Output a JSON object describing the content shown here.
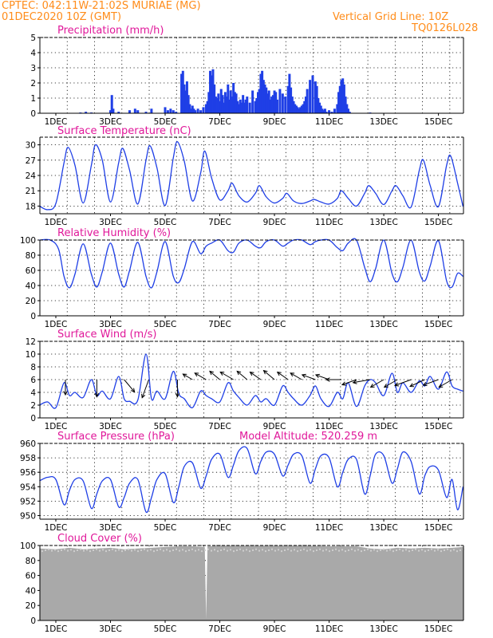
{
  "header": {
    "station_line": "CPTEC:   042:11W-21:02S   MURIAE (MG)",
    "date_line": "01DEC2020  10Z  (GMT)",
    "grid_line": "Vertical Grid Line: 10Z",
    "product_code": "TQ0126L028"
  },
  "colors": {
    "header": "#ff8c1a",
    "panel_title": "#e0189a",
    "series_line": "#1f3fe6",
    "precip_bar": "#1f3fe6",
    "cloud_fill": "#a9a9a9",
    "wind_arrow": "#000000",
    "grid": "#000000"
  },
  "x_axis": {
    "start": "01DEC2020 10Z",
    "days": 15.5,
    "tick_labels": [
      "1DEC",
      "3DEC",
      "5DEC",
      "7DEC",
      "9DEC",
      "11DEC",
      "13DEC",
      "15DEC"
    ],
    "tick_days": [
      1,
      3,
      5,
      7,
      9,
      11,
      13,
      15
    ],
    "vertical_grid": "daily at 10Z, dotted"
  },
  "chart_data": [
    {
      "id": "precip",
      "type": "bar",
      "title": "Precipitation (mm/h)",
      "ylim": [
        0,
        5
      ],
      "yticks": [
        0,
        1,
        2,
        3,
        4,
        5
      ],
      "x_units": "days since 01DEC 00Z",
      "x": [
        1.9,
        2.1,
        2.3,
        3.0,
        3.05,
        3.1,
        3.3,
        3.7,
        3.9,
        4.0,
        4.3,
        4.5,
        5.0,
        5.1,
        5.2,
        5.3,
        5.4,
        5.6,
        5.65,
        5.7,
        5.75,
        5.8,
        5.85,
        5.9,
        5.95,
        6.0,
        6.05,
        6.1,
        6.2,
        6.3,
        6.4,
        6.5,
        6.55,
        6.6,
        6.65,
        6.7,
        6.75,
        6.8,
        6.85,
        6.9,
        6.95,
        7.0,
        7.05,
        7.1,
        7.15,
        7.2,
        7.25,
        7.3,
        7.35,
        7.4,
        7.45,
        7.5,
        7.55,
        7.6,
        7.65,
        7.7,
        7.75,
        7.8,
        7.85,
        7.9,
        7.95,
        8.0,
        8.1,
        8.2,
        8.3,
        8.35,
        8.4,
        8.45,
        8.5,
        8.55,
        8.6,
        8.65,
        8.7,
        8.75,
        8.8,
        8.85,
        8.9,
        8.95,
        9.0,
        9.05,
        9.1,
        9.2,
        9.3,
        9.4,
        9.5,
        9.55,
        9.6,
        9.65,
        9.7,
        9.75,
        9.8,
        9.85,
        9.9,
        9.95,
        10.0,
        10.05,
        10.1,
        10.15,
        10.2,
        10.3,
        10.4,
        10.5,
        10.55,
        10.6,
        10.65,
        10.7,
        10.75,
        10.8,
        10.85,
        10.9,
        11.0,
        11.1,
        11.2,
        11.3,
        11.35,
        11.4,
        11.45,
        11.5,
        11.55,
        11.6,
        11.65,
        11.7,
        11.75,
        12.5
      ],
      "values": [
        0.05,
        0.1,
        0.05,
        0.2,
        1.2,
        0.3,
        0.1,
        0.2,
        0.3,
        0.2,
        0.1,
        0.3,
        0.4,
        0.2,
        0.3,
        0.2,
        0.1,
        2.6,
        2.8,
        1.9,
        1.5,
        2.1,
        1.2,
        0.6,
        0.3,
        0.5,
        0.3,
        0.2,
        0.3,
        0.2,
        0.4,
        0.6,
        0.8,
        1.4,
        2.8,
        2.5,
        2.9,
        1.9,
        1.1,
        1.0,
        1.3,
        0.8,
        1.6,
        1.2,
        0.7,
        1.4,
        1.1,
        1.9,
        0.9,
        1.5,
        1.1,
        2.0,
        1.4,
        1.3,
        0.8,
        0.6,
        0.9,
        0.7,
        1.2,
        0.7,
        0.9,
        1.1,
        0.7,
        1.5,
        0.8,
        1.0,
        1.4,
        1.6,
        2.6,
        2.8,
        2.2,
        1.9,
        1.7,
        1.3,
        1.5,
        0.9,
        1.1,
        1.2,
        1.5,
        1.4,
        0.9,
        1.6,
        1.3,
        1.1,
        1.8,
        2.6,
        1.7,
        1.1,
        0.8,
        0.6,
        0.5,
        0.4,
        0.3,
        0.4,
        0.5,
        0.6,
        0.8,
        1.1,
        1.6,
        2.2,
        2.5,
        2.1,
        1.8,
        1.0,
        0.7,
        0.5,
        0.3,
        0.2,
        0.3,
        0.1,
        0.2,
        0.1,
        0.3,
        0.6,
        1.4,
        1.8,
        2.2,
        2.3,
        1.9,
        1.1,
        0.6,
        0.3,
        0.1,
        0.05
      ]
    },
    {
      "id": "temperature",
      "type": "line",
      "title": "Surface Temperature (nC)",
      "ylim": [
        16.5,
        31.5
      ],
      "yticks": [
        18,
        21,
        24,
        27,
        30
      ],
      "x_units": "days since 01DEC 00Z",
      "x": [
        0.4,
        0.7,
        1.0,
        1.3,
        1.45,
        1.7,
        2.0,
        2.3,
        2.45,
        2.7,
        3.0,
        3.3,
        3.45,
        3.7,
        4.0,
        4.3,
        4.45,
        4.7,
        5.0,
        5.3,
        5.45,
        5.7,
        6.0,
        6.3,
        6.45,
        6.7,
        7.0,
        7.3,
        7.45,
        7.7,
        8.0,
        8.3,
        8.45,
        8.7,
        9.0,
        9.3,
        9.45,
        9.7,
        10.0,
        10.3,
        10.45,
        10.7,
        11.0,
        11.3,
        11.45,
        11.7,
        12.0,
        12.3,
        12.45,
        12.7,
        13.0,
        13.3,
        13.45,
        13.7,
        14.0,
        14.3,
        14.45,
        14.7,
        15.0,
        15.3,
        15.45,
        15.7,
        15.9
      ],
      "values": [
        18.0,
        17.3,
        18.5,
        26.5,
        29.5,
        26.0,
        18.6,
        26.0,
        30.0,
        27.0,
        18.8,
        26.5,
        29.3,
        25.0,
        18.4,
        27.0,
        29.8,
        25.5,
        18.1,
        27.5,
        30.6,
        26.8,
        19.0,
        24.5,
        28.8,
        23.5,
        19.2,
        21.0,
        22.5,
        20.0,
        18.8,
        20.5,
        22.0,
        19.8,
        18.6,
        19.5,
        20.5,
        19.0,
        18.5,
        19.0,
        19.3,
        18.8,
        18.4,
        19.5,
        21.0,
        19.5,
        18.0,
        20.5,
        22.0,
        20.5,
        18.3,
        21.0,
        22.0,
        20.0,
        17.8,
        25.0,
        27.0,
        22.0,
        17.9,
        26.0,
        27.8,
        22.5,
        17.9
      ]
    },
    {
      "id": "humidity",
      "type": "line",
      "title": "Relative Humidity (%)",
      "ylim": [
        0,
        100
      ],
      "yticks": [
        0,
        20,
        40,
        60,
        80,
        100
      ],
      "x_units": "days since 01DEC 00Z",
      "x": [
        0.4,
        0.8,
        1.1,
        1.3,
        1.5,
        1.7,
        2.0,
        2.3,
        2.5,
        2.7,
        3.0,
        3.3,
        3.5,
        3.7,
        4.0,
        4.3,
        4.5,
        4.7,
        5.0,
        5.3,
        5.5,
        5.7,
        6.0,
        6.3,
        6.5,
        6.7,
        7.0,
        7.3,
        7.5,
        7.7,
        8.0,
        8.3,
        8.5,
        8.7,
        9.0,
        9.3,
        9.5,
        9.7,
        10.0,
        10.3,
        10.5,
        10.7,
        11.0,
        11.3,
        11.5,
        11.7,
        12.0,
        12.3,
        12.5,
        12.7,
        13.0,
        13.3,
        13.5,
        13.7,
        14.0,
        14.3,
        14.5,
        14.7,
        15.0,
        15.3,
        15.5,
        15.7,
        15.9
      ],
      "values": [
        100,
        100,
        88,
        52,
        37,
        55,
        95,
        55,
        38,
        58,
        96,
        55,
        38,
        60,
        97,
        52,
        37,
        58,
        98,
        52,
        44,
        62,
        98,
        82,
        92,
        96,
        100,
        86,
        84,
        96,
        100,
        92,
        90,
        98,
        100,
        92,
        96,
        100,
        100,
        94,
        98,
        100,
        100,
        90,
        86,
        96,
        100,
        64,
        45,
        62,
        100,
        56,
        45,
        64,
        100,
        58,
        46,
        66,
        99,
        46,
        38,
        56,
        52
      ]
    },
    {
      "id": "wind",
      "type": "line",
      "title": "Surface Wind (m/s)",
      "ylim": [
        0,
        12
      ],
      "yticks": [
        0,
        2,
        4,
        6,
        8,
        10,
        12
      ],
      "x_units": "days since 01DEC 00Z",
      "x": [
        0.4,
        0.7,
        1.0,
        1.3,
        1.5,
        1.7,
        2.0,
        2.3,
        2.5,
        2.7,
        3.0,
        3.3,
        3.5,
        3.7,
        4.0,
        4.3,
        4.5,
        4.7,
        5.0,
        5.3,
        5.5,
        5.7,
        6.0,
        6.3,
        6.5,
        6.7,
        7.0,
        7.3,
        7.5,
        7.7,
        8.0,
        8.3,
        8.5,
        8.7,
        9.0,
        9.3,
        9.5,
        9.7,
        10.0,
        10.3,
        10.5,
        10.7,
        11.0,
        11.3,
        11.5,
        11.7,
        12.0,
        12.3,
        12.5,
        12.7,
        13.0,
        13.3,
        13.5,
        13.7,
        14.0,
        14.3,
        14.5,
        14.7,
        15.0,
        15.3,
        15.5,
        15.7,
        15.9
      ],
      "values": [
        2.0,
        2.5,
        1.6,
        5.5,
        3.5,
        4.0,
        3.2,
        6.0,
        3.5,
        4.2,
        3.0,
        6.5,
        3.0,
        2.6,
        2.8,
        10.0,
        3.0,
        4.2,
        3.0,
        7.3,
        3.8,
        3.0,
        1.6,
        4.2,
        3.5,
        3.0,
        2.5,
        5.5,
        4.2,
        3.2,
        2.0,
        3.5,
        2.5,
        3.0,
        2.0,
        5.0,
        4.0,
        3.0,
        2.0,
        3.5,
        5.0,
        3.0,
        1.8,
        4.0,
        3.0,
        5.5,
        1.8,
        5.0,
        6.0,
        5.5,
        3.5,
        7.0,
        4.0,
        5.5,
        4.0,
        5.8,
        5.0,
        6.5,
        4.5,
        7.2,
        5.0,
        4.5,
        4.2
      ]
    },
    {
      "id": "pressure",
      "type": "line",
      "title": "Surface Pressure (hPa)",
      "annotation": "Model Altitude: 520.259  m",
      "ylim": [
        949.5,
        960
      ],
      "yticks": [
        950,
        952,
        954,
        956,
        958,
        960
      ],
      "x_units": "days since 01DEC 00Z",
      "x": [
        0.4,
        0.7,
        1.0,
        1.3,
        1.5,
        1.7,
        2.0,
        2.3,
        2.5,
        2.7,
        3.0,
        3.3,
        3.5,
        3.7,
        4.0,
        4.3,
        4.5,
        4.7,
        5.0,
        5.3,
        5.5,
        5.7,
        6.0,
        6.3,
        6.5,
        6.7,
        7.0,
        7.3,
        7.5,
        7.7,
        8.0,
        8.3,
        8.5,
        8.7,
        9.0,
        9.3,
        9.5,
        9.7,
        10.0,
        10.3,
        10.5,
        10.7,
        11.0,
        11.3,
        11.5,
        11.7,
        12.0,
        12.3,
        12.5,
        12.7,
        13.0,
        13.3,
        13.5,
        13.7,
        14.0,
        14.3,
        14.5,
        14.7,
        15.0,
        15.3,
        15.5,
        15.7,
        15.9
      ],
      "values": [
        954.8,
        955.3,
        955.0,
        951.5,
        953.5,
        955.0,
        954.8,
        951.0,
        953.0,
        954.8,
        955.0,
        951.2,
        952.5,
        954.5,
        955.0,
        950.5,
        952.5,
        955.0,
        955.8,
        951.8,
        954.0,
        956.8,
        957.3,
        953.8,
        955.5,
        957.8,
        958.5,
        955.3,
        957.0,
        959.0,
        959.3,
        955.8,
        957.5,
        958.8,
        958.5,
        955.5,
        957.0,
        958.5,
        958.3,
        954.5,
        956.5,
        958.3,
        958.0,
        954.0,
        956.0,
        957.8,
        957.8,
        953.0,
        955.5,
        958.5,
        958.3,
        954.5,
        956.5,
        958.8,
        957.5,
        953.0,
        955.5,
        956.8,
        956.3,
        952.5,
        955.0,
        950.8,
        954.0
      ]
    },
    {
      "id": "cloud",
      "type": "area",
      "title": "Cloud Cover (%)",
      "ylim": [
        0,
        100
      ],
      "yticks": [
        0,
        20,
        40,
        60,
        80,
        100
      ],
      "x_units": "days since 01DEC 00Z",
      "x": [
        0.4,
        1.0,
        1.5,
        2.0,
        2.5,
        3.0,
        3.5,
        4.0,
        4.5,
        5.0,
        5.5,
        6.0,
        6.45,
        6.5,
        6.55,
        7.0,
        8.0,
        9.0,
        10.0,
        11.0,
        12.0,
        12.5,
        13.0,
        13.5,
        14.0,
        14.5,
        15.0,
        15.5,
        15.9
      ],
      "values": [
        96,
        95,
        97,
        95,
        96,
        97,
        95,
        96,
        97,
        98,
        99,
        99,
        98,
        2,
        99,
        100,
        100,
        100,
        100,
        99,
        99,
        96,
        95,
        97,
        96,
        97,
        96,
        97,
        98
      ]
    }
  ],
  "wind_arrows": {
    "x": [
      1.35,
      2.5,
      3.5,
      4.4,
      5.45,
      6.0,
      6.5,
      7.0,
      7.5,
      8.0,
      8.5,
      9.0,
      9.5,
      10.0,
      10.5,
      11.0,
      11.45,
      12.0,
      12.5,
      13.0,
      13.5,
      14.0,
      14.5,
      15.0,
      15.5
    ],
    "direction_deg": [
      180,
      180,
      140,
      200,
      180,
      300,
      300,
      310,
      300,
      310,
      305,
      310,
      305,
      300,
      290,
      290,
      270,
      250,
      260,
      240,
      240,
      250,
      245,
      250,
      240
    ],
    "speed": [
      5,
      6,
      5.5,
      7,
      6,
      3,
      4,
      4,
      5,
      4,
      4,
      4.5,
      4,
      4,
      4.5,
      4.5,
      5,
      5,
      6,
      5,
      5,
      6,
      5.5,
      5.5,
      5
    ]
  }
}
